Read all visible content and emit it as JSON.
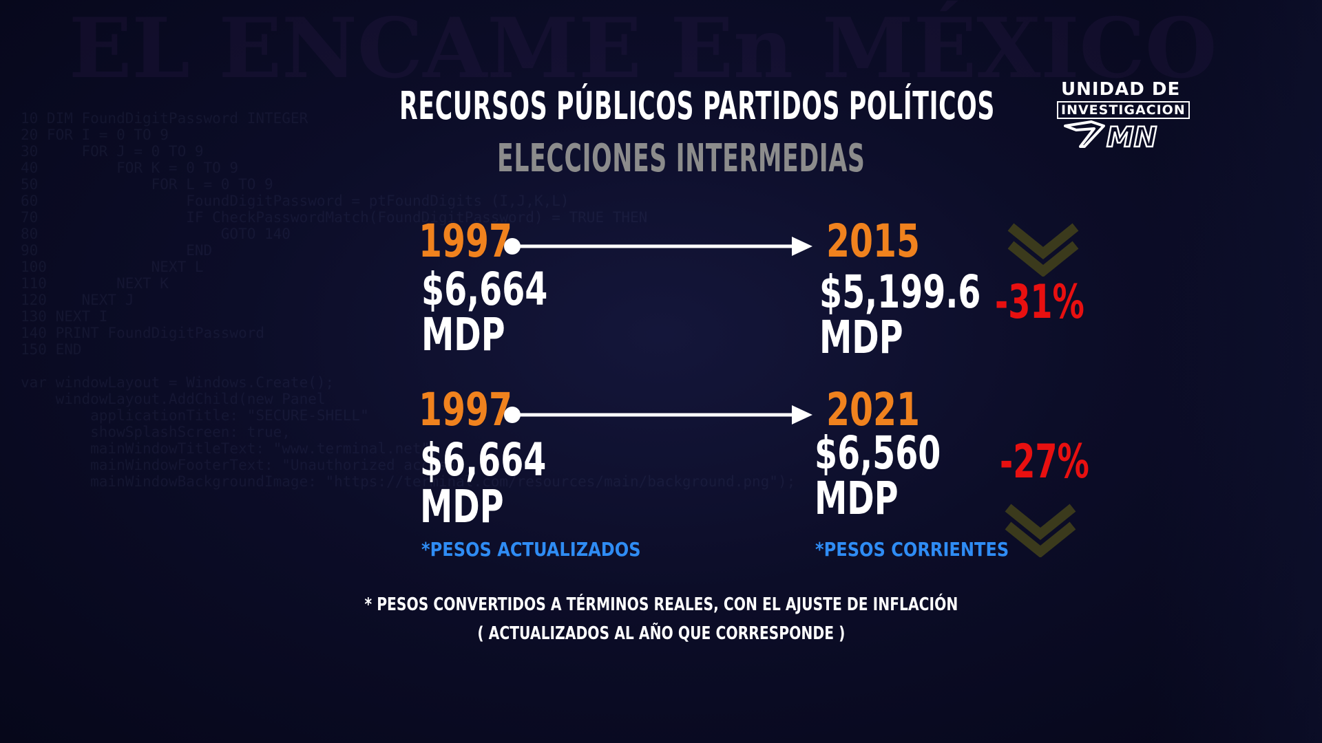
{
  "title": "RECURSOS PÚBLICOS PARTIDOS POLÍTICOS",
  "subtitle": "ELECCIONES INTERMEDIAS",
  "logo": {
    "line1": "UNIDAD DE",
    "line2": "INVESTIGACION",
    "mark": "MN"
  },
  "comparisons": [
    {
      "from_year": "1997",
      "from_amount": "$6,664",
      "from_unit": "MDP",
      "to_year": "2015",
      "to_amount": "$5,199.6",
      "to_unit": "MDP",
      "change": "-31%",
      "change_icon": "double-chevron-down-icon"
    },
    {
      "from_year": "1997",
      "from_amount": "$6,664",
      "from_unit": "MDP",
      "to_year": "2021",
      "to_amount": "$6,560",
      "to_unit": "MDP",
      "change": "-27%",
      "change_icon": "double-chevron-down-icon"
    }
  ],
  "notes": {
    "left": "*PESOS ACTUALIZADOS",
    "right": "*PESOS CORRIENTES"
  },
  "footnote": {
    "line1": "* PESOS CONVERTIDOS A TÉRMINOS REALES, CON EL AJUSTE DE INFLACIÓN",
    "line2": "( ACTUALIZADOS AL AÑO QUE CORRESPONDE )"
  },
  "colors": {
    "year": "#f0821e",
    "change": "#e81010",
    "note": "#2f8cf4",
    "subtitle": "#8c8c8c",
    "chevron": "#3b3a1c"
  }
}
